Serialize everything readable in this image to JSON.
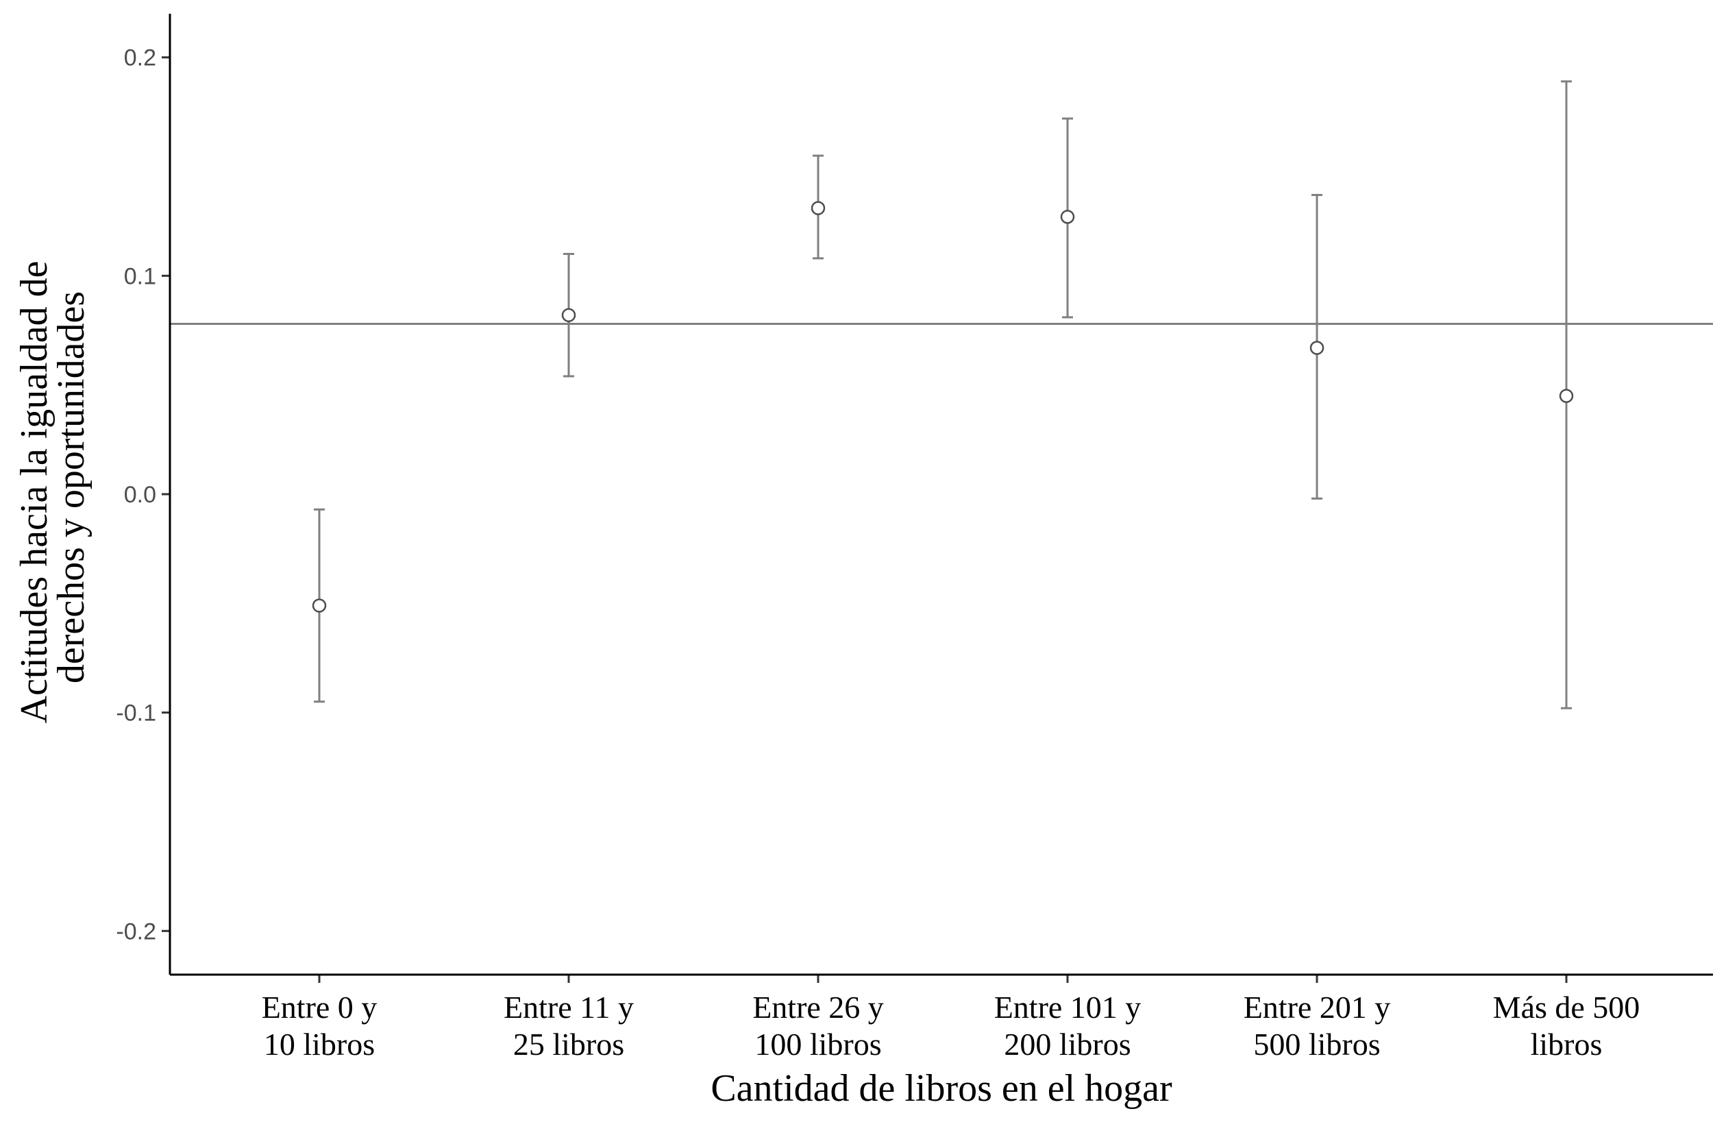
{
  "chart_data": {
    "type": "scatter",
    "subtype": "point-with-errorbars",
    "title": "",
    "xlabel": "Cantidad de libros en el hogar",
    "ylabel_lines": [
      "Actitudes hacia la igualdad de",
      "derechos y oportunidades"
    ],
    "categories": [
      [
        "Entre 0 y",
        "10 libros"
      ],
      [
        "Entre 11 y",
        "25 libros"
      ],
      [
        "Entre 26 y",
        "100 libros"
      ],
      [
        "Entre 101 y",
        "200 libros"
      ],
      [
        "Entre 201 y",
        "500 libros"
      ],
      [
        "Más de 500",
        "libros"
      ]
    ],
    "values": [
      -0.051,
      0.082,
      0.131,
      0.127,
      0.067,
      0.045
    ],
    "lower": [
      -0.095,
      0.054,
      0.108,
      0.081,
      -0.002,
      -0.098
    ],
    "upper": [
      -0.007,
      0.11,
      0.155,
      0.172,
      0.137,
      0.189
    ],
    "reference_line": 0.078,
    "ylim": [
      -0.22,
      0.22
    ],
    "yticks": [
      -0.2,
      -0.1,
      0.0,
      0.1,
      0.2
    ],
    "ytick_labels": [
      "-0.2",
      "-0.1",
      "0.0",
      "0.1",
      "0.2"
    ],
    "grid": false,
    "legend": "none",
    "colors": {
      "errorbar": "#808080",
      "point_edge": "#4d4d4d",
      "point_fill": "#ffffff",
      "axis": "#000000"
    }
  }
}
